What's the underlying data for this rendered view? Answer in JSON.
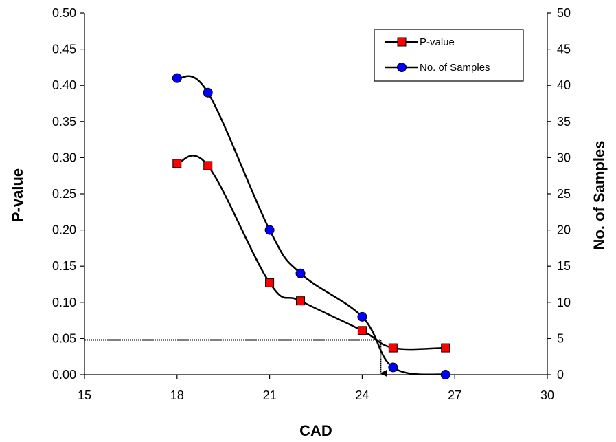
{
  "chart_data": {
    "type": "line",
    "xlabel": "CAD",
    "ylabel_left": "P-value",
    "ylabel_right": "No. of Samples",
    "xlim": [
      15,
      30
    ],
    "ylim_left": [
      0,
      0.5
    ],
    "ylim_right": [
      0,
      50
    ],
    "x_ticks": [
      "15",
      "18",
      "21",
      "24",
      "27",
      "30"
    ],
    "y_left_ticks": [
      "0.00",
      "0.05",
      "0.10",
      "0.15",
      "0.20",
      "0.25",
      "0.30",
      "0.35",
      "0.40",
      "0.45",
      "0.50"
    ],
    "y_right_ticks": [
      "0",
      "5",
      "10",
      "15",
      "20",
      "25",
      "30",
      "35",
      "40",
      "45",
      "50"
    ],
    "grid": false,
    "legend_position": "top-right",
    "series": [
      {
        "name": "P-value",
        "axis": "left",
        "marker": "square",
        "marker_color": "#ff0000",
        "line_color": "#000000",
        "points": [
          {
            "x": 18,
            "y": 0.292
          },
          {
            "x": 19,
            "y": 0.289
          },
          {
            "x": 21,
            "y": 0.127
          },
          {
            "x": 22,
            "y": 0.102
          },
          {
            "x": 24,
            "y": 0.061
          },
          {
            "x": 25,
            "y": 0.037
          },
          {
            "x": 26.7,
            "y": 0.037
          }
        ]
      },
      {
        "name": "No. of Samples",
        "axis": "right",
        "marker": "circle",
        "marker_color": "#0000ff",
        "line_color": "#000000",
        "points": [
          {
            "x": 18,
            "y": 41
          },
          {
            "x": 19,
            "y": 39
          },
          {
            "x": 21,
            "y": 20
          },
          {
            "x": 22,
            "y": 14
          },
          {
            "x": 24,
            "y": 8
          },
          {
            "x": 25,
            "y": 1
          },
          {
            "x": 26.7,
            "y": 0
          }
        ]
      }
    ],
    "annotations": [
      {
        "type": "dashed-reference-line",
        "y": 0.048,
        "x_from": 15,
        "x_to": 24.6
      },
      {
        "type": "dashed-arrow-down",
        "x": 24.6,
        "y_from": 0.048,
        "y_to": 0
      }
    ]
  }
}
